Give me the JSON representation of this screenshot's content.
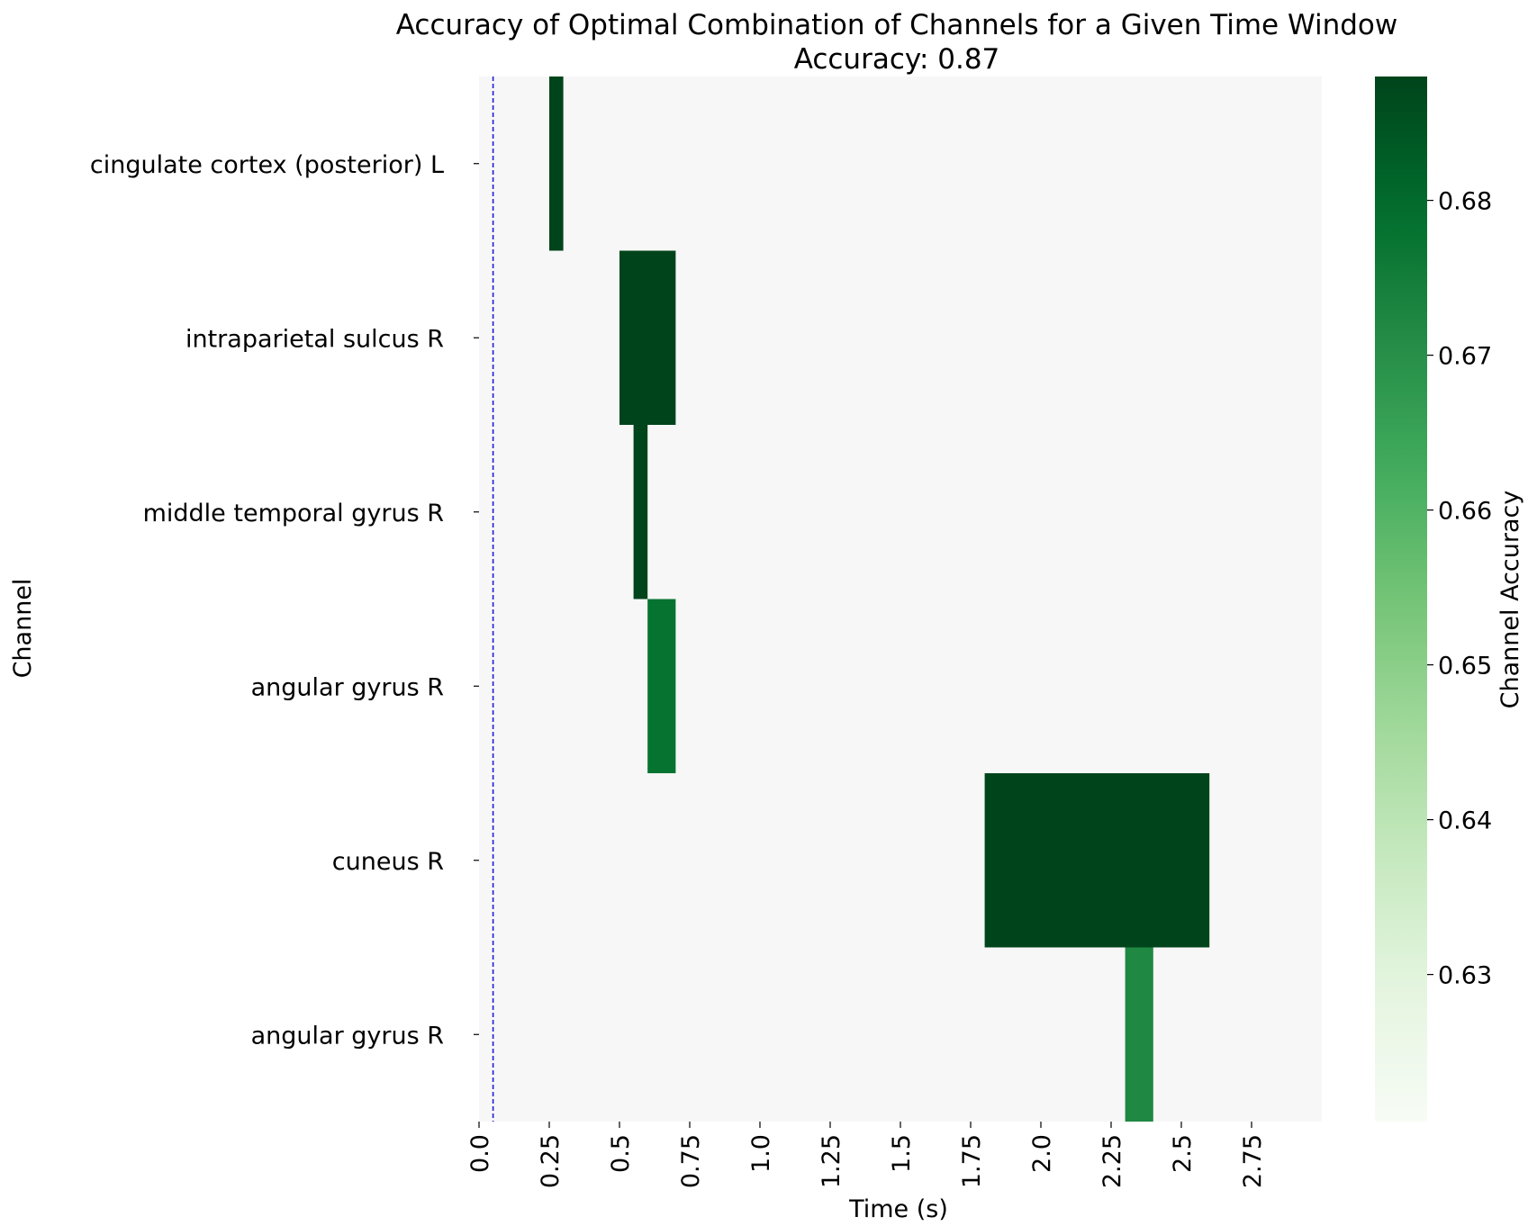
{
  "chart_data": {
    "type": "heatmap",
    "title": "Accuracy of Optimal Combination of Channels for a Given Time Window",
    "subtitle": "Accuracy: 0.87",
    "xlabel": "Time (s)",
    "ylabel": "Channel",
    "colorbar_label": "Channel Accuracy",
    "xlim": [
      0,
      3.0
    ],
    "x_ticks": [
      0.0,
      0.25,
      0.5,
      0.75,
      1.0,
      1.25,
      1.5,
      1.75,
      2.0,
      2.25,
      2.5,
      2.75
    ],
    "x_tick_labels": [
      "0.0",
      "0.25",
      "0.5",
      "0.75",
      "1.0",
      "1.25",
      "1.5",
      "1.75",
      "2.0",
      "2.25",
      "2.5",
      "2.75"
    ],
    "channels": [
      "cingulate cortex (posterior) L",
      "intraparietal sulcus R",
      "middle temporal gyrus R",
      "angular gyrus R",
      "cuneus R",
      "angular gyrus R"
    ],
    "cells": [
      {
        "row": 0,
        "start": 0.25,
        "end": 0.3,
        "accuracy": 0.688
      },
      {
        "row": 1,
        "start": 0.5,
        "end": 0.7,
        "accuracy": 0.688
      },
      {
        "row": 2,
        "start": 0.55,
        "end": 0.6,
        "accuracy": 0.688
      },
      {
        "row": 3,
        "start": 0.6,
        "end": 0.7,
        "accuracy": 0.678
      },
      {
        "row": 4,
        "start": 1.8,
        "end": 2.6,
        "accuracy": 0.688
      },
      {
        "row": 5,
        "start": 2.3,
        "end": 2.4,
        "accuracy": 0.672
      }
    ],
    "reference_line": {
      "x": 0.05,
      "color": "#1f1fd6",
      "style": "dashed"
    },
    "colorbar": {
      "min": 0.6205,
      "max": 0.688,
      "ticks": [
        0.63,
        0.64,
        0.65,
        0.66,
        0.67,
        0.68
      ],
      "tick_labels": [
        "0.63",
        "0.64",
        "0.65",
        "0.66",
        "0.67",
        "0.68"
      ],
      "colormap": "Greens"
    },
    "background_color": "#f7f7f7",
    "grid": false
  }
}
